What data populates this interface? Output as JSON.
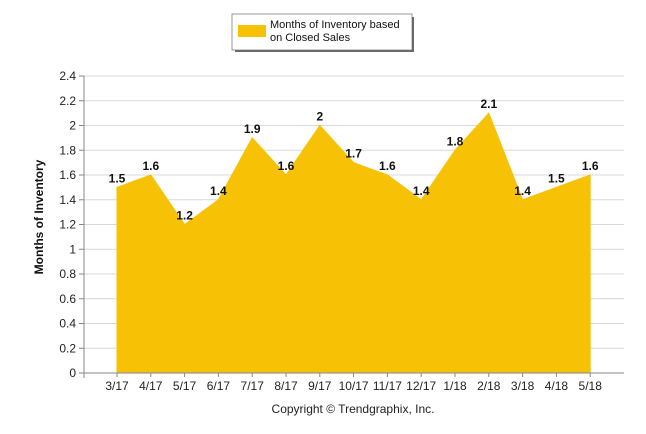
{
  "chart_data": {
    "type": "area",
    "categories": [
      "3/17",
      "4/17",
      "5/17",
      "6/17",
      "7/17",
      "8/17",
      "9/17",
      "10/17",
      "11/17",
      "12/17",
      "1/18",
      "2/18",
      "3/18",
      "4/18",
      "5/18"
    ],
    "series": [
      {
        "name": "Months of Inventory based on Closed Sales",
        "values": [
          1.5,
          1.6,
          1.2,
          1.4,
          1.9,
          1.6,
          2,
          1.7,
          1.6,
          1.4,
          1.8,
          2.1,
          1.4,
          1.5,
          1.6
        ],
        "value_labels": [
          "1.5",
          "1.6",
          "1.2",
          "1.4",
          "1.9",
          "1.6",
          "2",
          "1.7",
          "1.6",
          "1.4",
          "1.8",
          "2.1",
          "1.4",
          "1.5",
          "1.6"
        ],
        "color": "#F7C206"
      }
    ],
    "ylabel": "Months of Inventory",
    "yticks": [
      "0",
      "0.2",
      "0.4",
      "0.6",
      "0.8",
      "1",
      "1.2",
      "1.4",
      "1.6",
      "1.8",
      "2",
      "2.2",
      "2.4"
    ],
    "ylim": [
      0,
      2.4
    ],
    "grid": true,
    "legend_position": "top-center",
    "legend_lines": [
      "Months of Inventory based",
      "on Closed Sales"
    ],
    "footer": "Copyright © Trendgraphix, Inc."
  }
}
